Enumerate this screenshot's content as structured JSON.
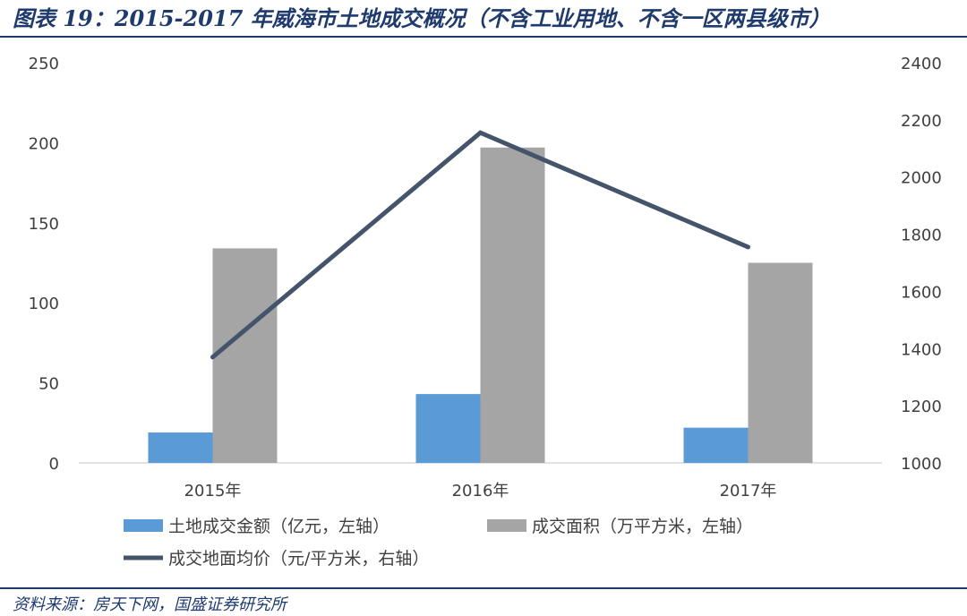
{
  "header": {
    "title": "图表 19：2015-2017 年威海市土地成交概况（不含工业用地、不含一区两县级市）"
  },
  "footer": {
    "source": "资料来源：房天下网，国盛证券研究所"
  },
  "chart_data": {
    "type": "bar",
    "categories": [
      "2015年",
      "2016年",
      "2017年"
    ],
    "series": [
      {
        "name": "土地成交金额（亿元，左轴）",
        "type": "bar",
        "axis": "left",
        "color": "#5b9bd5",
        "values": [
          19,
          43,
          22
        ]
      },
      {
        "name": "成交面积（万平方米，左轴）",
        "type": "bar",
        "axis": "left",
        "color": "#a5a5a5",
        "values": [
          134,
          197,
          125
        ]
      },
      {
        "name": "成交地面均价（元/平方米，右轴）",
        "type": "line",
        "axis": "right",
        "color": "#44546a",
        "values": [
          1370,
          2155,
          1755
        ]
      }
    ],
    "left_axis": {
      "min": 0,
      "max": 250,
      "ticks": [
        0,
        50,
        100,
        150,
        200,
        250
      ]
    },
    "right_axis": {
      "min": 1000,
      "max": 2400,
      "ticks": [
        1000,
        1200,
        1400,
        1600,
        1800,
        2000,
        2200,
        2400
      ]
    },
    "grid": false,
    "legend": "bottom"
  }
}
